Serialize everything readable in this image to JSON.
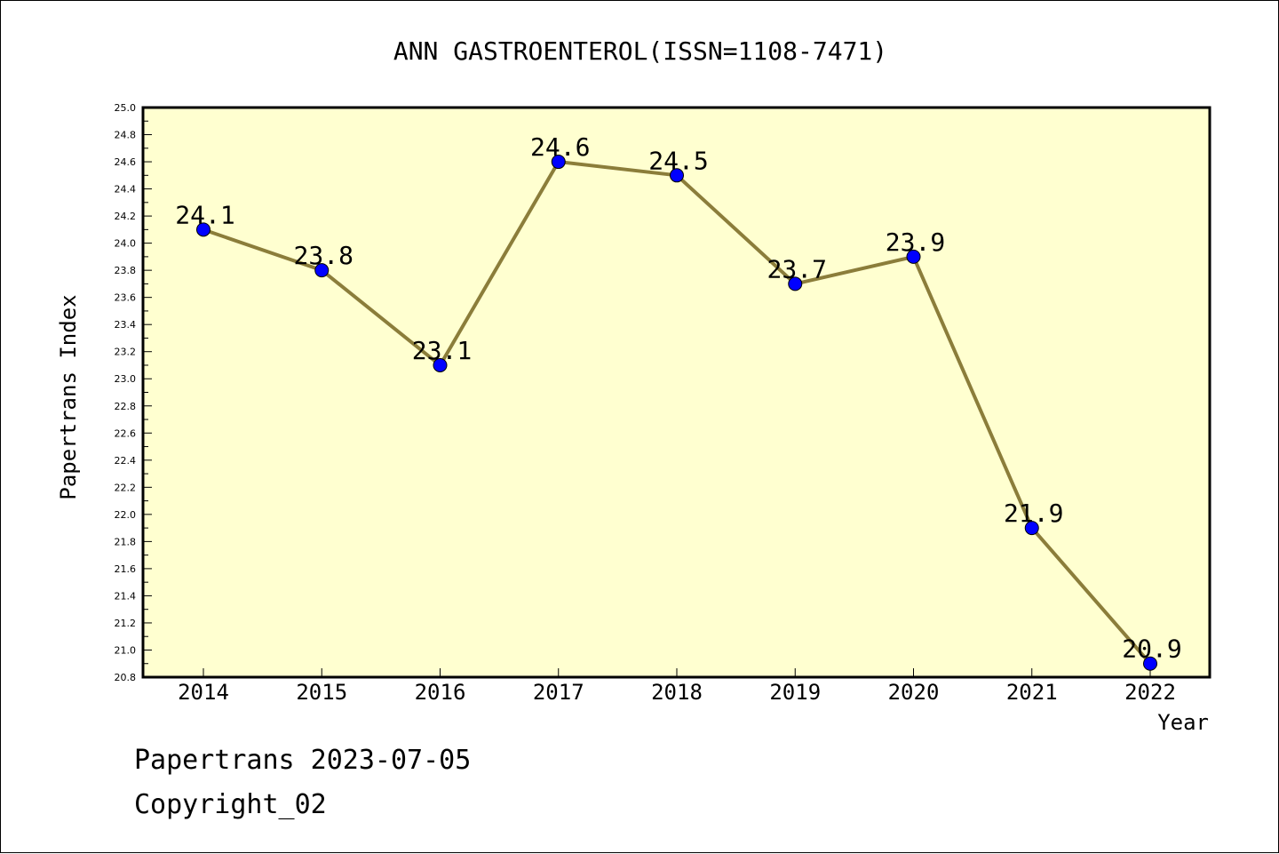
{
  "chart_data": {
    "type": "line",
    "title": "ANN GASTROENTEROL(ISSN=1108-7471)",
    "xlabel": "Year",
    "ylabel": "Papertrans Index",
    "x": [
      "2014",
      "2015",
      "2016",
      "2017",
      "2018",
      "2019",
      "2020",
      "2021",
      "2022"
    ],
    "series": [
      {
        "values": [
          24.1,
          23.8,
          23.1,
          24.6,
          24.5,
          23.7,
          23.9,
          21.9,
          20.9
        ]
      }
    ],
    "data_labels": [
      "24.1",
      "23.8",
      "23.1",
      "24.6",
      "24.5",
      "23.7",
      "23.9",
      "21.9",
      "20.9"
    ],
    "ylim": [
      20.8,
      25.0
    ],
    "y_tick_labels": [
      "20.8",
      "21.0",
      "21.2",
      "21.4",
      "21.6",
      "21.8",
      "22.0",
      "22.2",
      "22.4",
      "22.6",
      "22.8",
      "23.0",
      "23.2",
      "23.4",
      "23.6",
      "23.8",
      "24.0",
      "24.2",
      "24.4",
      "24.6",
      "24.8",
      "25.0"
    ],
    "grid": false,
    "colors": {
      "plot_background": "#ffffd0",
      "line": "#8b7d3a",
      "marker": "#0000ff"
    }
  },
  "footer": {
    "line1": "Papertrans 2023-07-05",
    "line2": "Copyright_02"
  }
}
